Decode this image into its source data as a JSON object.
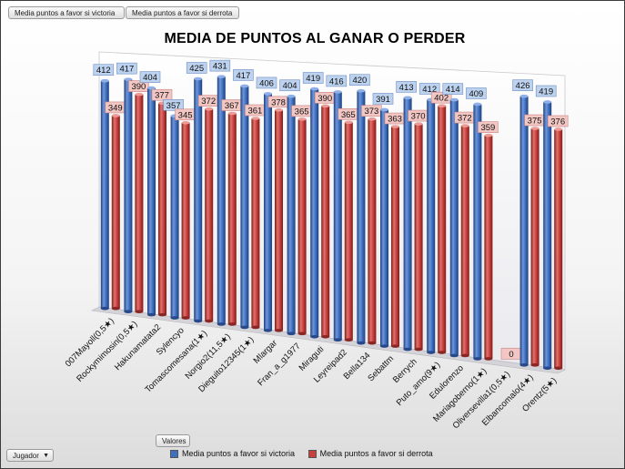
{
  "pivot_buttons": {
    "victory": "Media puntos a favor si victoria",
    "defeat": "Media puntos a favor si derrota",
    "values": "Valores",
    "player": "Jugador"
  },
  "colors": {
    "victory": "#3f6fbf",
    "defeat": "#c8403c",
    "victory_label_bg": "#bcd2ee",
    "defeat_label_bg": "#f2c6c3"
  },
  "chart_data": {
    "type": "bar",
    "title": "MEDIA DE PUNTOS  AL GANAR O PERDER",
    "xlabel": "",
    "ylabel": "",
    "ylim": [
      0,
      450
    ],
    "legend_position": "bottom",
    "categories": [
      "007Mayoll(0,5★)",
      "Rockymimosin(0,5★)",
      "Hakunamatata2",
      "Sylencyo",
      "Tomascomesana(1★)",
      "Norgio2(11,5★)",
      "Dieguito12345(1★)",
      "Mlargar",
      "Fran_a_g1977",
      "Miraguti",
      "Leyreipad2",
      "Bella134",
      "Sebattm",
      "Berrych",
      "Puto_amo(9★)",
      "Edulorenzo",
      "Mariagoberno(1★)",
      "Oliversevilla1(0,5★)",
      "Elbancomalo(4★)",
      "Orentz(5★)"
    ],
    "series": [
      {
        "name": "Media puntos a favor si victoria",
        "values": [
          412,
          417,
          404,
          357,
          425,
          431,
          417,
          406,
          404,
          419,
          416,
          420,
          391,
          413,
          412,
          414,
          409,
          null,
          426,
          419
        ],
        "labels": [
          "412",
          "417",
          "404",
          "357",
          "425",
          "431",
          "417",
          "406",
          "404",
          "419",
          "416",
          "420",
          "391",
          "413",
          "412",
          "414",
          "409",
          "",
          "426",
          "419"
        ]
      },
      {
        "name": "Media puntos a favor si derrota",
        "values": [
          349,
          390,
          377,
          345,
          372,
          367,
          361,
          378,
          365,
          390,
          365,
          373,
          363,
          370,
          402,
          372,
          359,
          0,
          375,
          376
        ],
        "labels": [
          "349",
          "390",
          "377",
          "345",
          "372",
          "367",
          "361",
          "378",
          "365",
          "390",
          "365",
          "373",
          "363",
          "370",
          "402",
          "372",
          "359",
          "0",
          "375",
          "376"
        ]
      }
    ]
  }
}
